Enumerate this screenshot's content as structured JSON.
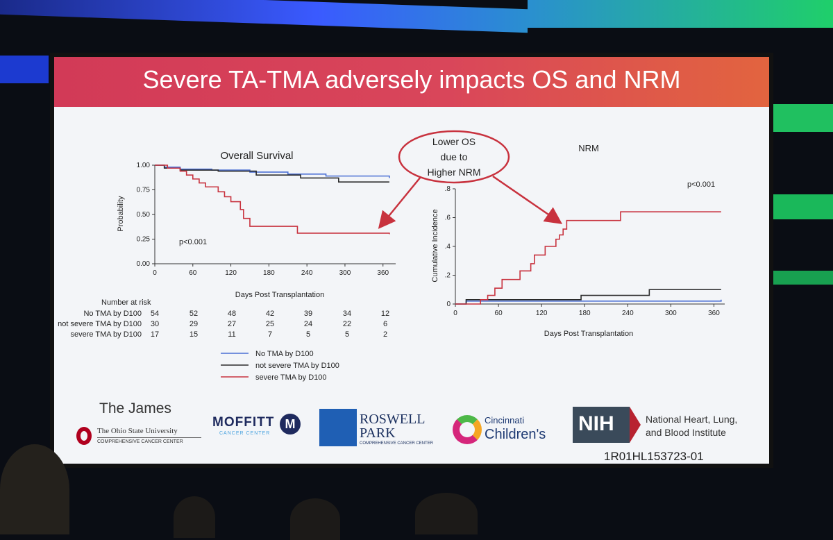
{
  "slide": {
    "title": "Severe TA-TMA adversely impacts OS and NRM",
    "callout": [
      "Lower OS",
      "due to",
      "Higher NRM"
    ],
    "grant": "1R01HL153723-01"
  },
  "colors": {
    "no_tma": "#4a6fd4",
    "not_severe": "#2a2a2a",
    "severe": "#c8323e",
    "title_start": "#d23a57",
    "title_end": "#e2643f"
  },
  "chart_data": [
    {
      "type": "line",
      "title": "Overall Survival",
      "xlabel": "Days Post Transplantation",
      "ylabel": "Probability",
      "xlim": [
        0,
        380
      ],
      "ylim": [
        0,
        1
      ],
      "xticks": [
        0,
        60,
        120,
        180,
        240,
        300,
        360
      ],
      "yticks": [
        0,
        0.25,
        0.5,
        0.75,
        1.0
      ],
      "ytick_labels": [
        "0.00",
        "0.25",
        "0.50",
        "0.75",
        "1.00"
      ],
      "annotation": "p<0.001",
      "series": [
        {
          "name": "No TMA by D100",
          "color": "#4a6fd4",
          "x": [
            0,
            15,
            40,
            90,
            150,
            210,
            270,
            370
          ],
          "y": [
            1.0,
            0.98,
            0.96,
            0.95,
            0.93,
            0.91,
            0.89,
            0.87
          ]
        },
        {
          "name": "not severe TMA by D100",
          "color": "#2a2a2a",
          "x": [
            0,
            15,
            40,
            100,
            160,
            230,
            290,
            370
          ],
          "y": [
            1.0,
            0.97,
            0.95,
            0.94,
            0.9,
            0.87,
            0.83,
            0.83
          ]
        },
        {
          "name": "severe TMA by D100",
          "color": "#c8323e",
          "x": [
            0,
            20,
            40,
            50,
            60,
            70,
            80,
            100,
            110,
            120,
            135,
            140,
            150,
            225,
            370
          ],
          "y": [
            1.0,
            0.97,
            0.94,
            0.9,
            0.86,
            0.82,
            0.78,
            0.73,
            0.68,
            0.63,
            0.55,
            0.46,
            0.38,
            0.31,
            0.3
          ]
        }
      ],
      "risk_table": {
        "header": "Number at risk",
        "rows": [
          {
            "label": "No TMA by D100",
            "values": [
              "54",
              "52",
              "48",
              "42",
              "39",
              "34",
              "12"
            ]
          },
          {
            "label": "not severe TMA by D100",
            "values": [
              "30",
              "29",
              "27",
              "25",
              "24",
              "22",
              "6"
            ]
          },
          {
            "label": "severe TMA by D100",
            "values": [
              "17",
              "15",
              "11",
              "7",
              "5",
              "5",
              "2"
            ]
          }
        ]
      },
      "legend": [
        "No TMA by D100",
        "not severe TMA by D100",
        "severe TMA by D100"
      ]
    },
    {
      "type": "line",
      "title": "NRM",
      "xlabel": "Days Post Transplantation",
      "ylabel": "Cumulative Incidence",
      "xlim": [
        0,
        375
      ],
      "ylim": [
        0,
        0.8
      ],
      "xticks": [
        0,
        60,
        120,
        180,
        240,
        300,
        360
      ],
      "yticks": [
        0,
        0.2,
        0.4,
        0.6,
        0.8
      ],
      "ytick_labels": [
        "0",
        ".2",
        ".4",
        ".6",
        ".8"
      ],
      "annotation": "p<0.001",
      "series": [
        {
          "name": "No TMA by D100",
          "color": "#4a6fd4",
          "x": [
            0,
            15,
            370
          ],
          "y": [
            0,
            0.02,
            0.03
          ]
        },
        {
          "name": "not severe TMA by D100",
          "color": "#2a2a2a",
          "x": [
            0,
            15,
            175,
            270,
            370
          ],
          "y": [
            0,
            0.03,
            0.06,
            0.1,
            0.1
          ]
        },
        {
          "name": "severe TMA by D100",
          "color": "#c8323e",
          "x": [
            0,
            35,
            45,
            55,
            65,
            90,
            105,
            110,
            115,
            125,
            140,
            145,
            150,
            155,
            225,
            230,
            370
          ],
          "y": [
            0,
            0.03,
            0.06,
            0.11,
            0.17,
            0.23,
            0.28,
            0.34,
            0.34,
            0.4,
            0.45,
            0.48,
            0.52,
            0.58,
            0.58,
            0.64,
            0.64
          ]
        }
      ]
    }
  ],
  "logos": {
    "osu": {
      "top": "The James",
      "main": "The Ohio State University",
      "sub": "COMPREHENSIVE CANCER CENTER"
    },
    "moffitt": {
      "main": "MOFFITT",
      "sub": "CANCER CENTER"
    },
    "roswell": {
      "main1": "ROSWELL",
      "main2": "PARK",
      "sub": "COMPREHENSIVE CANCER CENTER"
    },
    "cincinnati": {
      "line1": "Cincinnati",
      "line2": "Children's"
    },
    "nih": {
      "badge": "NIH",
      "line1": "National Heart, Lung,",
      "line2": "and Blood Institute"
    }
  }
}
